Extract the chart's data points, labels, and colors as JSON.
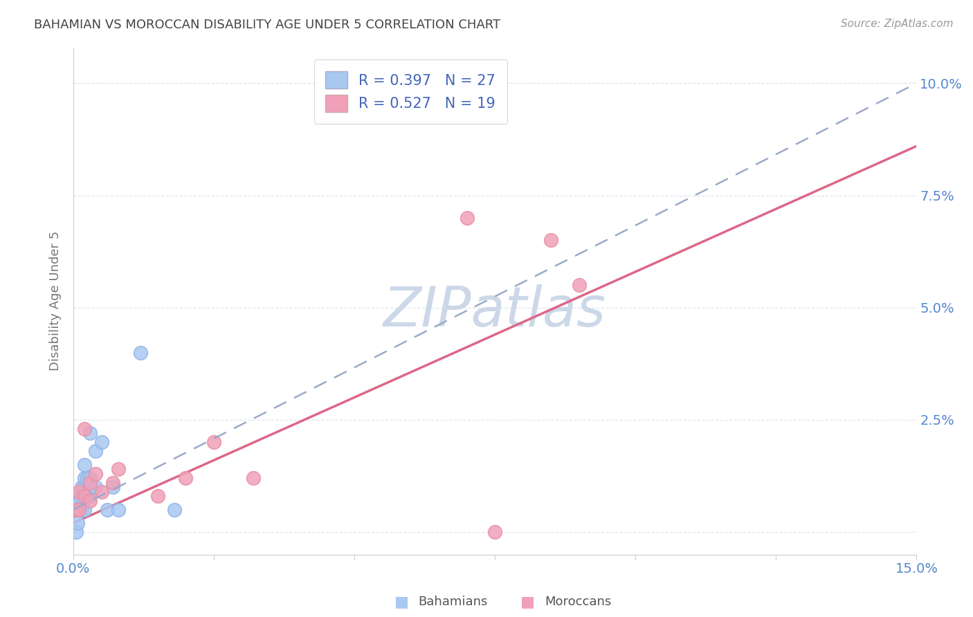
{
  "title": "BAHAMIAN VS MOROCCAN DISABILITY AGE UNDER 5 CORRELATION CHART",
  "source": "Source: ZipAtlas.com",
  "ylabel": "Disability Age Under 5",
  "xlim": [
    0.0,
    0.15
  ],
  "ylim": [
    -0.005,
    0.108
  ],
  "bahamians_x": [
    0.0005,
    0.0005,
    0.0008,
    0.001,
    0.001,
    0.0012,
    0.0015,
    0.0015,
    0.002,
    0.002,
    0.002,
    0.002,
    0.002,
    0.0025,
    0.0025,
    0.003,
    0.003,
    0.003,
    0.003,
    0.004,
    0.004,
    0.005,
    0.006,
    0.007,
    0.008,
    0.012,
    0.018
  ],
  "bahamians_y": [
    0.0,
    0.005,
    0.002,
    0.005,
    0.007,
    0.008,
    0.005,
    0.01,
    0.005,
    0.008,
    0.01,
    0.012,
    0.015,
    0.008,
    0.012,
    0.008,
    0.01,
    0.012,
    0.022,
    0.01,
    0.018,
    0.02,
    0.005,
    0.01,
    0.005,
    0.04,
    0.005
  ],
  "moroccans_x": [
    0.0005,
    0.001,
    0.001,
    0.002,
    0.002,
    0.003,
    0.003,
    0.004,
    0.005,
    0.007,
    0.008,
    0.015,
    0.02,
    0.025,
    0.032,
    0.07,
    0.075,
    0.085,
    0.09
  ],
  "moroccans_y": [
    0.005,
    0.005,
    0.009,
    0.008,
    0.023,
    0.007,
    0.011,
    0.013,
    0.009,
    0.011,
    0.014,
    0.008,
    0.012,
    0.02,
    0.012,
    0.07,
    0.0,
    0.065,
    0.055
  ],
  "bah_R": 0.397,
  "bah_N": 27,
  "mor_R": 0.527,
  "mor_N": 19,
  "bah_color": "#a8c8f0",
  "bah_edge_color": "#90b4e8",
  "mor_color": "#f0a0b8",
  "mor_edge_color": "#e890a8",
  "bah_line_color": "#5577cc",
  "mor_line_color": "#dd6688",
  "dashed_line_color": "#9aaac8",
  "background_color": "#ffffff",
  "watermark_color": "#ccd8e8",
  "title_color": "#444444",
  "axis_color": "#5588cc",
  "legend_text_color": "#4466bb",
  "grid_color": "#dde4ee"
}
